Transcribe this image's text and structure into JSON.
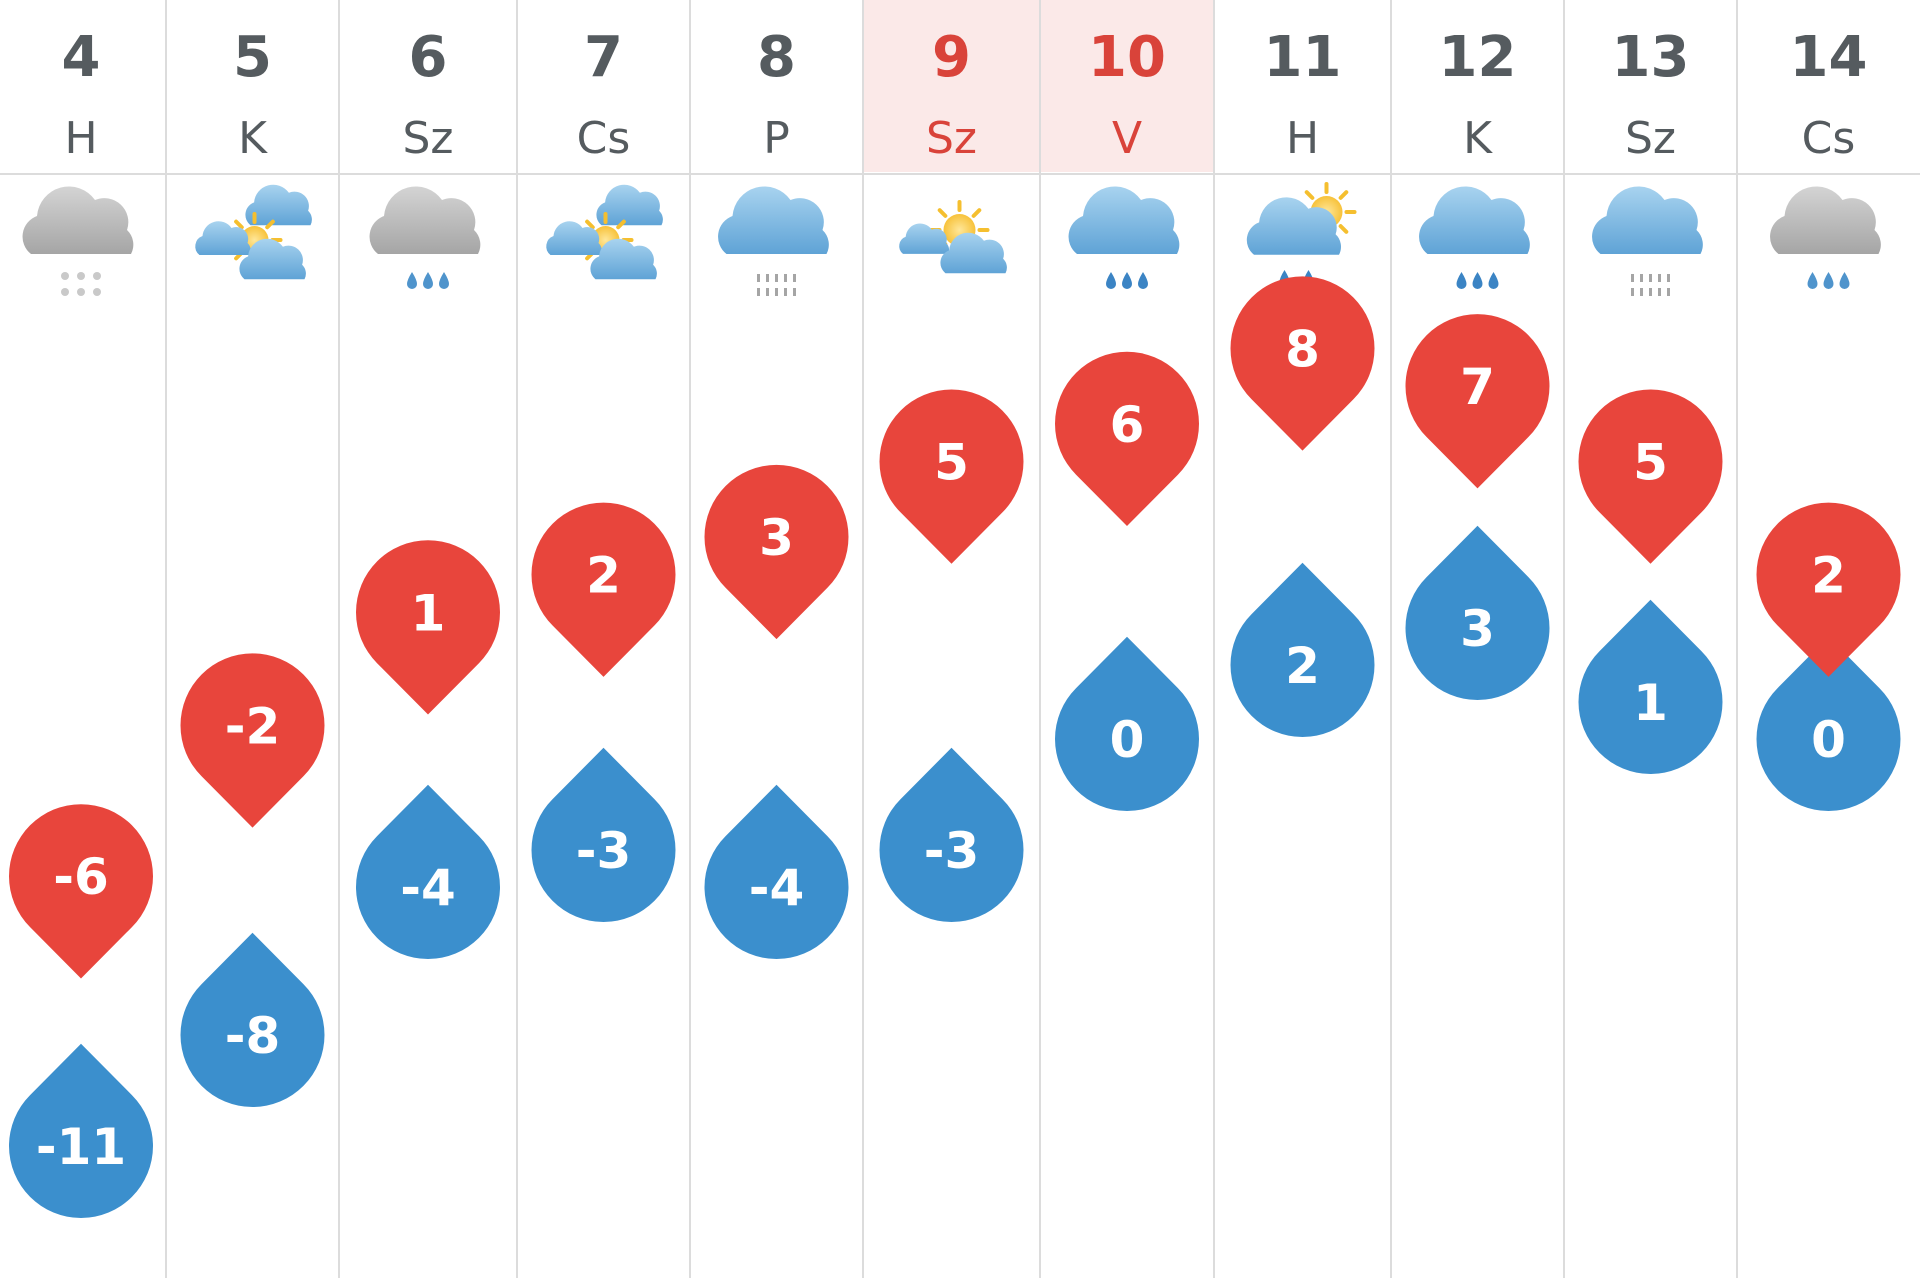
{
  "chart_data": {
    "type": "forecast-range",
    "days": [
      {
        "day": "4",
        "weekday": "H",
        "weekend": false,
        "icon": "cloud-snow-icon",
        "max": -6,
        "min": -11
      },
      {
        "day": "5",
        "weekday": "K",
        "weekend": false,
        "icon": "sun-clouds-icon",
        "max": -2,
        "min": -8
      },
      {
        "day": "6",
        "weekday": "Sz",
        "weekend": false,
        "icon": "cloud-sleet-icon",
        "max": 1,
        "min": -4
      },
      {
        "day": "7",
        "weekday": "Cs",
        "weekend": false,
        "icon": "sun-clouds-icon",
        "max": 2,
        "min": -3
      },
      {
        "day": "8",
        "weekday": "P",
        "weekend": false,
        "icon": "cloud-drizzle-icon",
        "max": 3,
        "min": -4
      },
      {
        "day": "9",
        "weekday": "Sz",
        "weekend": true,
        "icon": "sun-cloud-icon",
        "max": 5,
        "min": -3
      },
      {
        "day": "10",
        "weekday": "V",
        "weekend": true,
        "icon": "cloud-rain-icon",
        "max": 6,
        "min": 0
      },
      {
        "day": "11",
        "weekday": "H",
        "weekend": false,
        "icon": "sun-cloud-rain-icon",
        "max": 8,
        "min": 2
      },
      {
        "day": "12",
        "weekday": "K",
        "weekend": false,
        "icon": "cloud-rain-icon",
        "max": 7,
        "min": 3
      },
      {
        "day": "13",
        "weekday": "Sz",
        "weekend": false,
        "icon": "cloud-drizzle-icon",
        "max": 5,
        "min": 1
      },
      {
        "day": "14",
        "weekday": "Cs",
        "weekend": false,
        "icon": "cloud-sleet-icon",
        "max": 2,
        "min": 0
      }
    ],
    "colors": {
      "max": "#e8453c",
      "min": "#3b8fcd",
      "weekend_text": "#d9433a",
      "weekday_text": "#555b5f",
      "weekend_bg": "#fbe9e8",
      "grid": "#dcdcdc"
    }
  }
}
